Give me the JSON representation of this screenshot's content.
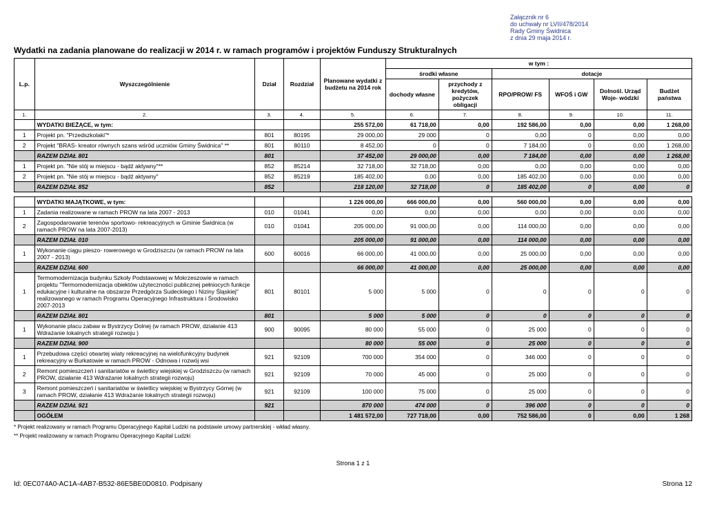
{
  "header": {
    "l1": "Załącznik nr 6",
    "l2": "do uchwały nr LVII/478/2014",
    "l3": "Rady Gminy Świdnica",
    "l4": "z dnia 29 maja 2014 r."
  },
  "title": "Wydatki na zadania planowane do realizacji w 2014 r. w ramach programów i projektów Funduszy Strukturalnych",
  "colHeaders": {
    "lp": "L.p.",
    "wyszcz": "Wyszczególnienie",
    "dzial": "Dział",
    "rozdz": "Rozdział",
    "plan": "Planowane wydatki z budżetu na 2014 rok",
    "wtym": "w tym :",
    "srodki": "środki własne",
    "dotacje": "dotacje",
    "dochody": "dochody własne",
    "przychody": "przychody z kredytów, pożyczek obligacji",
    "rpo": "RPO/PROW/ FS",
    "wfos": "WFOŚ i GW",
    "dolnos": "Dolnośl. Urząd Woje- wódzki",
    "budzet": "Budżet państwa"
  },
  "colNums": [
    "1.",
    "2.",
    "3.",
    "4.",
    "5.",
    "6.",
    "7.",
    "8.",
    "9.",
    "10.",
    "11."
  ],
  "rows": [
    {
      "type": "sub",
      "lp": "",
      "name": "WYDATKI BIEŻĄCE, w tym:",
      "dzial": "",
      "rozdz": "",
      "c5": "255 572,00",
      "c6": "61 718,00",
      "c7": "0,00",
      "c8": "192 586,00",
      "c9": "0,00",
      "c10": "0,00",
      "c11": "1 268,00"
    },
    {
      "type": "d",
      "lp": "1",
      "name": "Projekt pn. \"Przedszkolaki\"*",
      "dzial": "801",
      "rozdz": "80195",
      "c5": "29 000,00",
      "c6": "29 000",
      "c7": "0",
      "c8": "0,00",
      "c9": "0",
      "c10": "0,00",
      "c11": "0,00"
    },
    {
      "type": "d",
      "lp": "2",
      "name": "Projekt \"BRAS- kreator równych szans wśród uczniów Gminy Świdnica\" **",
      "dzial": "801",
      "rozdz": "80110",
      "c5": "8 452,00",
      "c6": "0",
      "c7": "0",
      "c8": "7 184,00",
      "c9": "0",
      "c10": "0,00",
      "c11": "1 268,00"
    },
    {
      "type": "sec",
      "lp": "",
      "name": "RAZEM DZIAŁ 801",
      "dzial": "801",
      "rozdz": "",
      "c5": "37 452,00",
      "c6": "29 000,00",
      "c7": "0,00",
      "c8": "7 184,00",
      "c9": "0,00",
      "c10": "0,00",
      "c11": "1 268,00"
    },
    {
      "type": "d",
      "lp": "1",
      "name": "Projekt pn. \"Nie stój w miejscu - bądź aktywny\"**",
      "dzial": "852",
      "rozdz": "85214",
      "c5": "32 718,00",
      "c6": "32 718,00",
      "c7": "0,00",
      "c8": "0,00",
      "c9": "0,00",
      "c10": "0,00",
      "c11": "0,00"
    },
    {
      "type": "d",
      "lp": "2",
      "name": "Projekt pn. \"Nie stój w miejscu - bądź aktywny\"",
      "dzial": "852",
      "rozdz": "85219",
      "c5": "185 402,00",
      "c6": "0,00",
      "c7": "0,00",
      "c8": "185 402,00",
      "c9": "0,00",
      "c10": "0,00",
      "c11": "0,00"
    },
    {
      "type": "sec",
      "lp": "",
      "name": "RAZEM DZIAŁ 852",
      "dzial": "852",
      "rozdz": "",
      "c5": "218 120,00",
      "c6": "32 718,00",
      "c7": "0",
      "c8": "185 402,00",
      "c9": "0",
      "c10": "0,00",
      "c11": "0"
    }
  ],
  "gap": true,
  "rows2": [
    {
      "type": "sub",
      "lp": "",
      "name": "WYDATKI MAJĄTKOWE, w tym:",
      "dzial": "",
      "rozdz": "",
      "c5": "1 226 000,00",
      "c6": "666 000,00",
      "c7": "0,00",
      "c8": "560 000,00",
      "c9": "0,00",
      "c10": "0,00",
      "c11": "0,00"
    },
    {
      "type": "d",
      "lp": "1",
      "name": "Zadania realizowane w ramach PROW na lata 2007 - 2013",
      "dzial": "010",
      "rozdz": "01041",
      "c5": "0,00",
      "c6": "0,00",
      "c7": "0,00",
      "c8": "0,00",
      "c9": "0,00",
      "c10": "0,00",
      "c11": "0,00"
    },
    {
      "type": "d",
      "lp": "2",
      "name": "Zagospodarowanie terenów sportowo- rekreacyjnych w Gminie Świdnica (w ramach PROW na lata 2007-2013)",
      "dzial": "010",
      "rozdz": "01041",
      "c5": "205 000,00",
      "c6": "91 000,00",
      "c7": "0,00",
      "c8": "114 000,00",
      "c9": "0,00",
      "c10": "0,00",
      "c11": "0,00"
    },
    {
      "type": "sec",
      "lp": "",
      "name": "RAZEM DZIAŁ 010",
      "dzial": "",
      "rozdz": "",
      "c5": "205 000,00",
      "c6": "91 000,00",
      "c7": "0,00",
      "c8": "114 000,00",
      "c9": "0,00",
      "c10": "0,00",
      "c11": "0,00"
    },
    {
      "type": "d",
      "lp": "1",
      "name": "Wykonanie ciągu pieszo- rowerowego w Grodziszczu (w ramach PROW na lata 2007 - 2013)",
      "dzial": "600",
      "rozdz": "60016",
      "c5": "66 000,00",
      "c6": "41 000,00",
      "c7": "0,00",
      "c8": "25 000,00",
      "c9": "0,00",
      "c10": "0,00",
      "c11": "0,00"
    },
    {
      "type": "sec",
      "lp": "",
      "name": "RAZEM DZIAŁ 600",
      "dzial": "",
      "rozdz": "",
      "c5": "66 000,00",
      "c6": "41 000,00",
      "c7": "0,00",
      "c8": "25 000,00",
      "c9": "0,00",
      "c10": "0,00",
      "c11": "0,00"
    },
    {
      "type": "d",
      "lp": "1",
      "name": "Termomodernizacja budynku Szkoły Podstawowej w Mokrzeszowie w ramach projektu \"Termomodernizacja obiektów użyteczności publicznej pełniocych funkcje edukacyjne i kulturalne na obszarze Przedgórza Sudeckiego i Niziny Śląskiej\" realizowanego w ramach Programu Operacyjnego Infrastruktura i Środowisko 2007-2013",
      "dzial": "801",
      "rozdz": "80101",
      "c5": "5 000",
      "c6": "5 000",
      "c7": "0",
      "c8": "0",
      "c9": "0",
      "c10": "0",
      "c11": "0"
    },
    {
      "type": "sec",
      "lp": "",
      "name": "RAZEM DZIAŁ 801",
      "dzial": "801",
      "rozdz": "",
      "c5": "5 000",
      "c6": "5 000",
      "c7": "0",
      "c8": "0",
      "c9": "0",
      "c10": "0",
      "c11": "0"
    },
    {
      "type": "d",
      "lp": "1",
      "name": "Wykonanie placu zabaw w Bystrzycy Dolnej (w ramach PROW, działanie 413 Wdrażanie lokalnych strategii rozwoju )",
      "dzial": "900",
      "rozdz": "90095",
      "c5": "80 000",
      "c6": "55 000",
      "c7": "0",
      "c8": "25 000",
      "c9": "0",
      "c10": "0",
      "c11": "0"
    },
    {
      "type": "sec",
      "lp": "",
      "name": "RAZEM DZIAŁ 900",
      "dzial": "",
      "rozdz": "",
      "c5": "80 000",
      "c6": "55 000",
      "c7": "0",
      "c8": "25 000",
      "c9": "0",
      "c10": "0",
      "c11": "0"
    },
    {
      "type": "d",
      "lp": "1",
      "name": "Przebudowa części otwartej wiaty rekreacyjnej na wielofunkcyjny budynek rekreacyjny w Burkatowie w ramach PROW - Odnowa i rozwój wsi",
      "dzial": "921",
      "rozdz": "92109",
      "c5": "700 000",
      "c6": "354 000",
      "c7": "0",
      "c8": "346 000",
      "c9": "0",
      "c10": "0",
      "c11": "0"
    },
    {
      "type": "d",
      "lp": "2",
      "name": "Remont pomieszczeń i sanitariatów w świetlicy wiejskiej w Grodziszczu (w ramach PROW, działanie 413 Wdrażanie lokalnych strategii rozwoju)",
      "dzial": "921",
      "rozdz": "92109",
      "c5": "70 000",
      "c6": "45 000",
      "c7": "0",
      "c8": "25 000",
      "c9": "0",
      "c10": "0",
      "c11": "0"
    },
    {
      "type": "d",
      "lp": "3",
      "name": "Remont pomieszczeń i sanitariatów w świetlicy wiejskiej w Bystrzycy Górnej (w ramach PROW, działanie 413 Wdrażanie lokalnych strategii rozwoju)",
      "dzial": "921",
      "rozdz": "92109",
      "c5": "100 000",
      "c6": "75 000",
      "c7": "0",
      "c8": "25 000",
      "c9": "0",
      "c10": "0",
      "c11": "0"
    },
    {
      "type": "sec",
      "lp": "",
      "name": "RAZEM DZIAŁ 921",
      "dzial": "921",
      "rozdz": "",
      "c5": "870 000",
      "c6": "474 000",
      "c7": "0",
      "c8": "396 000",
      "c9": "0",
      "c10": "0",
      "c11": "0"
    },
    {
      "type": "total",
      "lp": "",
      "name": "OGÓŁEM",
      "dzial": "",
      "rozdz": "",
      "c5": "1 481 572,00",
      "c6": "727 718,00",
      "c7": "0,00",
      "c8": "752 586,00",
      "c9": "0",
      "c10": "0,00",
      "c11": "1 268"
    }
  ],
  "footnotes": {
    "f1": "* Projekt realizowany w ramach Programu Operacyjnego Kapitał Ludzki na podstawie umowy partnerskiej - wkład własny.",
    "f2": "** Projekt realizowany w ramach Programu Operacyjnego Kapitał Ludzki"
  },
  "pageFoot": "Strona 1 z 1",
  "docId": "Id: 0EC074A0-AC1A-4AB7-B532-86E5BE0D0810. Podpisany",
  "pageNum": "Strona 12",
  "colWidths": {
    "lp": "25px",
    "name": "270px",
    "dzial": "35px",
    "rozdz": "45px",
    "amt": "75px"
  }
}
